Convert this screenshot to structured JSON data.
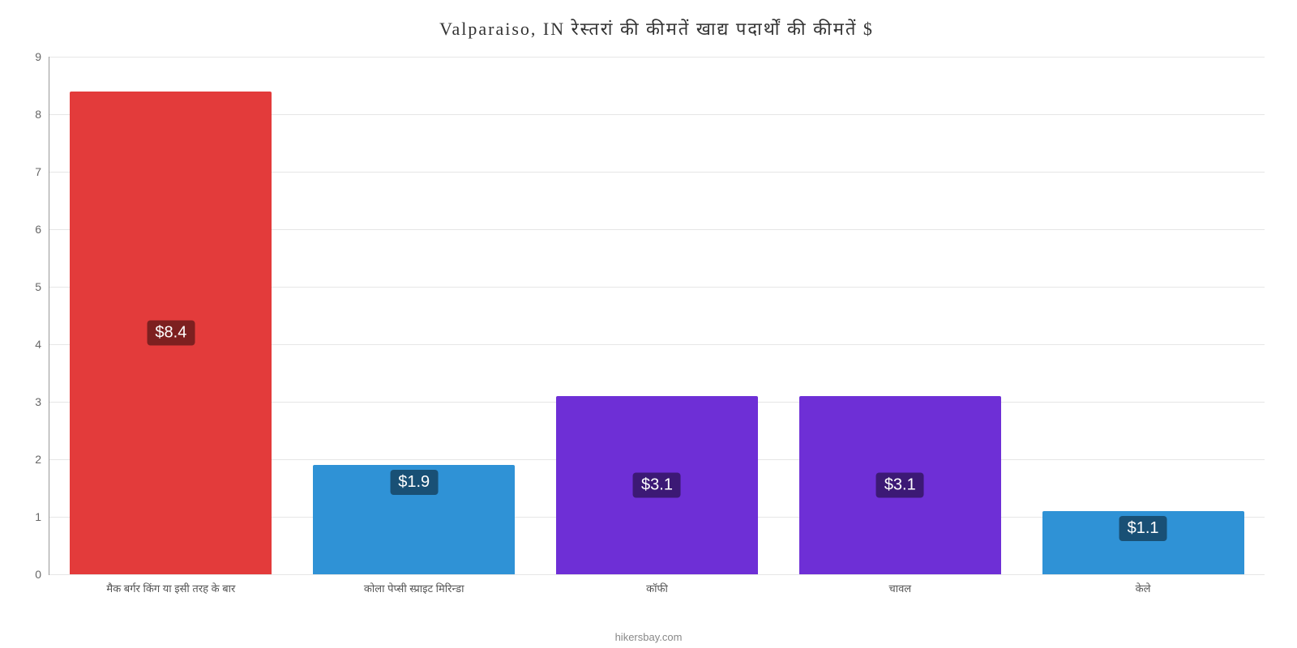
{
  "chart": {
    "type": "bar",
    "title": "Valparaiso, IN रेस्तरां की कीमतें खाद्य पदार्थों की कीमतें $",
    "title_fontsize": 22,
    "title_color": "#333333",
    "background_color": "#ffffff",
    "grid_color": "#e6e6e6",
    "axis_color": "#999999",
    "ylim": [
      0,
      9
    ],
    "ytick_step": 1,
    "yticks": [
      0,
      1,
      2,
      3,
      4,
      5,
      6,
      7,
      8,
      9
    ],
    "ytick_label_fontsize": 14,
    "ytick_label_color": "#666666",
    "xtick_label_fontsize": 13,
    "xtick_label_color": "#555555",
    "bar_width_ratio": 0.83,
    "value_label_fontsize": 20,
    "value_label_color": "#ffffff",
    "value_label_bg": "rgba(0,0,0,0.45)",
    "footer": "hikersbay.com",
    "footer_color": "#888888",
    "footer_fontsize": 13,
    "categories": [
      "मैक बर्गर किंग या इसी तरह के बार",
      "कोला पेप्सी स्प्राइट मिरिन्डा",
      "कॉफी",
      "चावल",
      "केले"
    ],
    "values": [
      8.4,
      1.9,
      3.1,
      3.1,
      1.1
    ],
    "value_labels": [
      "$8.4",
      "$1.9",
      "$3.1",
      "$3.1",
      "$1.1"
    ],
    "bar_colors": [
      "#e33b3b",
      "#2f92d6",
      "#6e2fd6",
      "#6e2fd6",
      "#2f92d6"
    ]
  }
}
